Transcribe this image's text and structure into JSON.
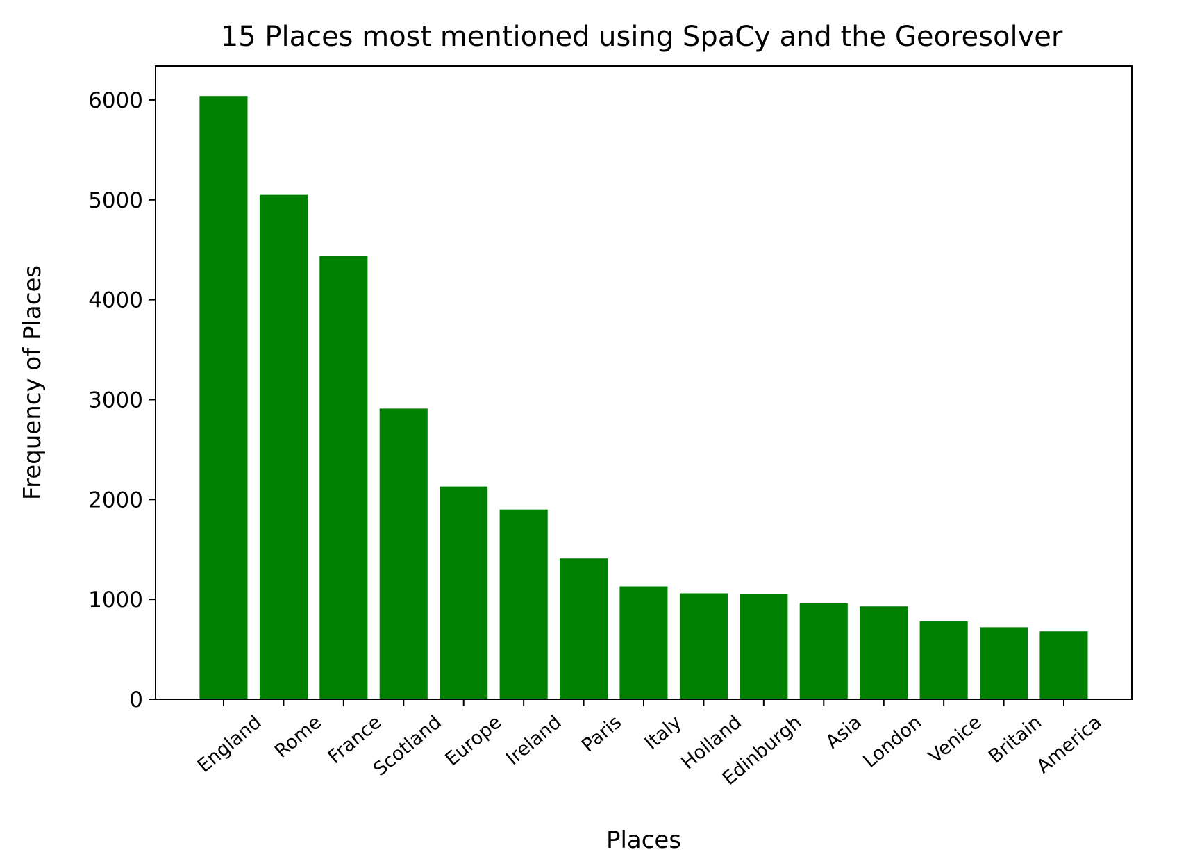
{
  "chart_data": {
    "type": "bar",
    "title": "15 Places most mentioned using SpaCy and the Georesolver",
    "xlabel": "Places",
    "ylabel": "Frequency of Places",
    "categories": [
      "England",
      "Rome",
      "France",
      "Scotland",
      "Europe",
      "Ireland",
      "Paris",
      "Italy",
      "Holland",
      "Edinburgh",
      "Asia",
      "London",
      "Venice",
      "Britain",
      "America"
    ],
    "values": [
      6040,
      5050,
      4440,
      2910,
      2130,
      1900,
      1410,
      1130,
      1060,
      1050,
      960,
      930,
      780,
      720,
      680
    ],
    "ylim": [
      0,
      6340
    ],
    "yticks": [
      0,
      1000,
      2000,
      3000,
      4000,
      5000,
      6000
    ],
    "bar_color": "#008000",
    "grid": false,
    "legend": "none"
  }
}
